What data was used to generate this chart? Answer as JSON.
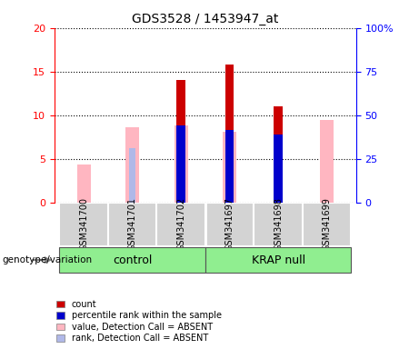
{
  "title": "GDS3528 / 1453947_at",
  "samples": [
    "GSM341700",
    "GSM341701",
    "GSM341702",
    "GSM341697",
    "GSM341698",
    "GSM341699"
  ],
  "ylim_left": [
    0,
    20
  ],
  "ylim_right": [
    0,
    100
  ],
  "yticks_left": [
    0,
    5,
    10,
    15,
    20
  ],
  "yticks_right": [
    0,
    25,
    50,
    75,
    100
  ],
  "ytick_labels_right": [
    "0",
    "25",
    "50",
    "75",
    "100%"
  ],
  "count_values": [
    null,
    null,
    14.0,
    15.8,
    11.0,
    null
  ],
  "percentile_values": [
    null,
    null,
    8.8,
    8.3,
    7.8,
    null
  ],
  "absent_value_values": [
    4.3,
    8.6,
    8.8,
    8.1,
    null,
    9.4
  ],
  "absent_rank_values": [
    null,
    6.2,
    null,
    null,
    6.4,
    null
  ],
  "count_color": "#cc0000",
  "percentile_color": "#0000cc",
  "absent_value_color": "#ffb6c1",
  "absent_rank_color": "#b0b8e8",
  "legend_entries": [
    "count",
    "percentile rank within the sample",
    "value, Detection Call = ABSENT",
    "rank, Detection Call = ABSENT"
  ],
  "legend_colors": [
    "#cc0000",
    "#0000cc",
    "#ffb6c1",
    "#b0b8e8"
  ]
}
